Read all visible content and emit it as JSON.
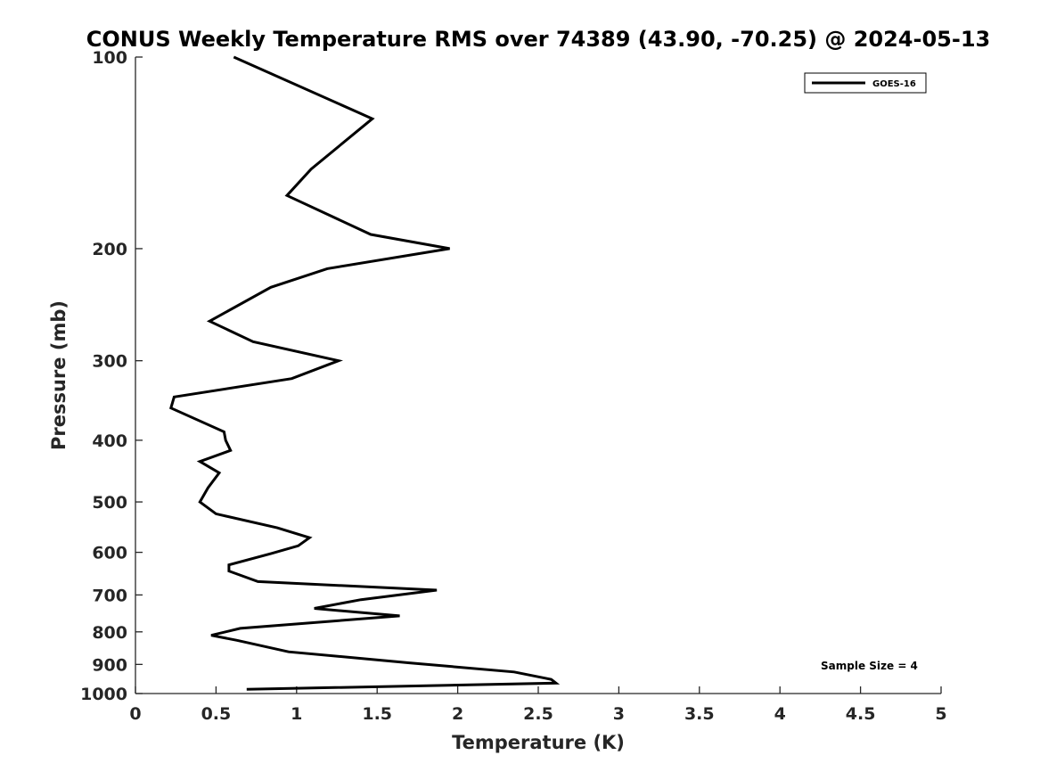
{
  "chart_data": {
    "type": "line",
    "title": "CONUS Weekly Temperature RMS over 74389 (43.90, -70.25) @ 2024-05-13",
    "xlabel": "Temperature (K)",
    "ylabel": "Pressure (mb)",
    "xlim": [
      0,
      5
    ],
    "ylim": [
      1000,
      100
    ],
    "yscale": "log",
    "y_inverted": true,
    "xticks": [
      0,
      0.5,
      1,
      1.5,
      2,
      2.5,
      3,
      3.5,
      4,
      4.5,
      5
    ],
    "xtick_labels": [
      "0",
      "0.5",
      "1",
      "1.5",
      "2",
      "2.5",
      "3",
      "3.5",
      "4",
      "4.5",
      "5"
    ],
    "yticks": [
      100,
      200,
      300,
      400,
      500,
      600,
      700,
      800,
      900,
      1000
    ],
    "ytick_labels": [
      "100",
      "200",
      "300",
      "400",
      "500",
      "600",
      "700",
      "800",
      "900",
      "1000"
    ],
    "grid": false,
    "legend_position": "top-right",
    "annotation": "Sample Size = 4",
    "colors": {
      "series": "#000000",
      "axis": "#262626"
    },
    "series": [
      {
        "name": "GOES-16",
        "x": [
          0.61,
          1.47,
          1.09,
          0.94,
          1.46,
          1.95,
          1.19,
          0.84,
          0.46,
          0.73,
          1.26,
          0.97,
          0.24,
          0.22,
          0.55,
          0.56,
          0.59,
          0.4,
          0.52,
          0.45,
          0.4,
          0.5,
          0.88,
          1.08,
          1.01,
          0.84,
          0.58,
          0.58,
          0.76,
          1.87,
          1.4,
          1.11,
          1.64,
          0.65,
          0.47,
          0.63,
          0.95,
          1.7,
          2.35,
          2.58,
          2.61,
          0.69
        ],
        "y": [
          100,
          125,
          150,
          165,
          190,
          200,
          215,
          230,
          260,
          280,
          300,
          320,
          342,
          356,
          388,
          400,
          415,
          432,
          450,
          475,
          500,
          522,
          549,
          569,
          586,
          603,
          628,
          642,
          667,
          688,
          712,
          735,
          755,
          790,
          810,
          825,
          860,
          895,
          925,
          950,
          963,
          985
        ]
      }
    ]
  }
}
